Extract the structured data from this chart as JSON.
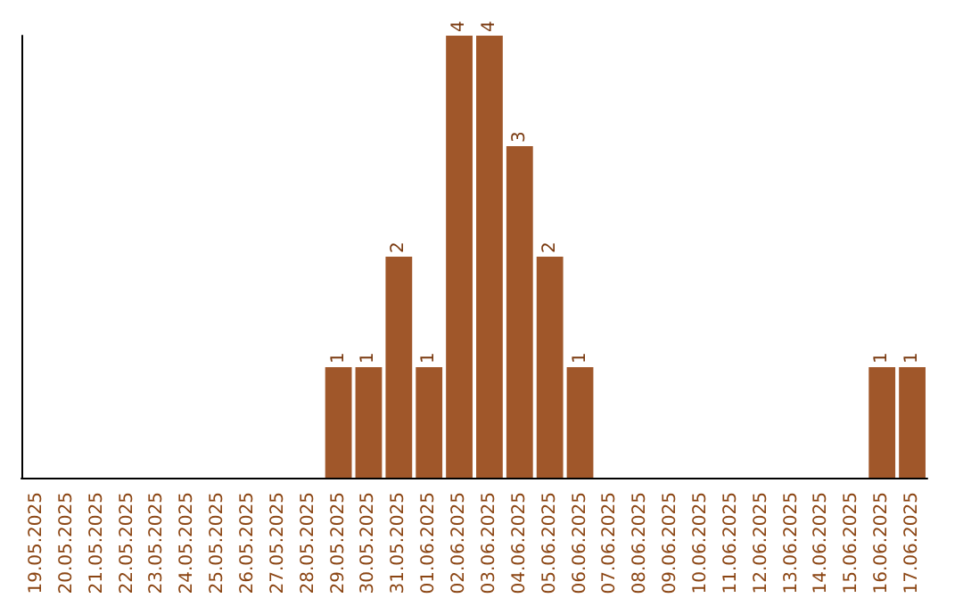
{
  "chart_data": {
    "type": "bar",
    "categories": [
      "19.05.2025",
      "20.05.2025",
      "21.05.2025",
      "22.05.2025",
      "23.05.2025",
      "24.05.2025",
      "25.05.2025",
      "26.05.2025",
      "27.05.2025",
      "28.05.2025",
      "29.05.2025",
      "30.05.2025",
      "31.05.2025",
      "01.06.2025",
      "02.06.2025",
      "03.06.2025",
      "04.06.2025",
      "05.06.2025",
      "06.06.2025",
      "07.06.2025",
      "08.06.2025",
      "09.06.2025",
      "10.06.2025",
      "11.06.2025",
      "12.06.2025",
      "13.06.2025",
      "14.06.2025",
      "15.06.2025",
      "16.06.2025",
      "17.06.2025"
    ],
    "values": [
      0,
      0,
      0,
      0,
      0,
      0,
      0,
      0,
      0,
      0,
      1,
      1,
      2,
      1,
      4,
      4,
      3,
      2,
      1,
      0,
      0,
      0,
      0,
      0,
      0,
      0,
      0,
      0,
      1,
      1
    ],
    "value_labels": [
      null,
      null,
      null,
      null,
      null,
      null,
      null,
      null,
      null,
      null,
      "1",
      "1",
      "2",
      "1",
      "4",
      "4",
      "3",
      "2",
      "1",
      null,
      null,
      null,
      null,
      null,
      null,
      null,
      null,
      null,
      "1",
      "1"
    ],
    "color": "#a0572a",
    "tick_labels": "x"
  }
}
